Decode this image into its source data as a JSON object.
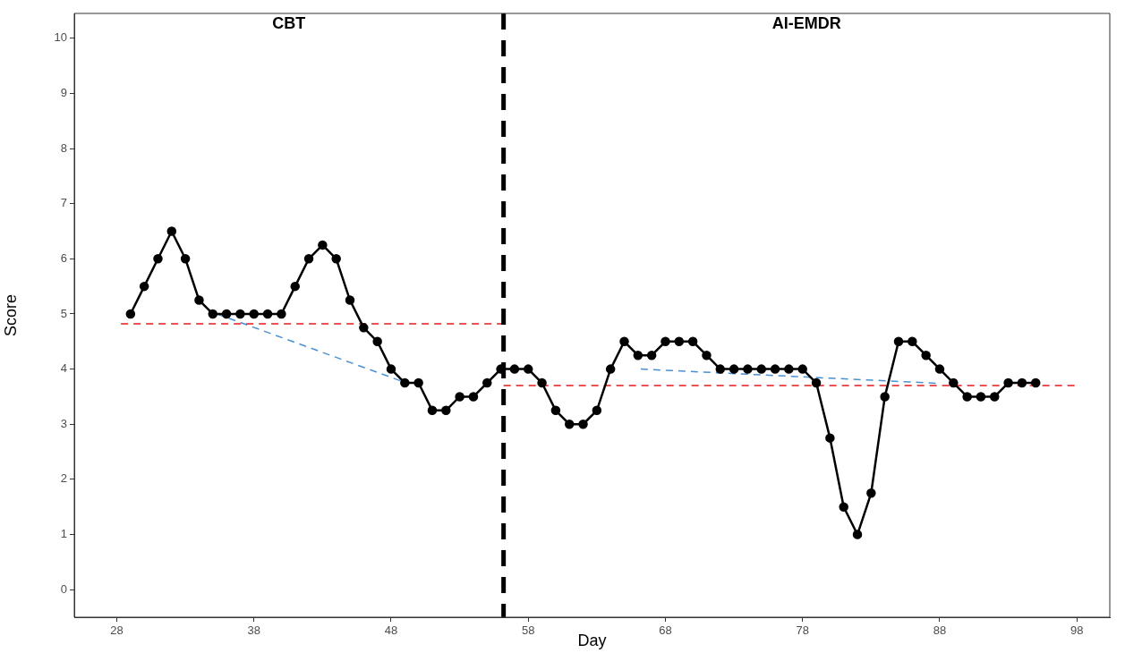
{
  "chart_data": {
    "type": "line",
    "xlabel": "Day",
    "ylabel": "Score",
    "x": [
      29,
      30,
      31,
      32,
      33,
      34,
      35,
      36,
      37,
      38,
      39,
      40,
      41,
      42,
      43,
      44,
      45,
      46,
      47,
      48,
      49,
      50,
      51,
      52,
      53,
      54,
      55,
      56,
      57,
      58,
      59,
      60,
      61,
      62,
      63,
      64,
      65,
      66,
      67,
      68,
      69,
      70,
      71,
      72,
      73,
      74,
      75,
      76,
      77,
      78,
      79,
      80,
      81,
      82,
      83,
      84,
      85,
      86,
      87,
      88,
      89,
      90,
      91,
      92,
      93,
      94,
      95
    ],
    "series": [
      {
        "color": "#000000",
        "marker": "circle",
        "line_style": "solid",
        "values": [
          5,
          5.5,
          6,
          6.5,
          6,
          5.25,
          5,
          5,
          5,
          5,
          5,
          5,
          5.5,
          6,
          6.25,
          6,
          5.25,
          4.75,
          4.5,
          4,
          3.75,
          3.75,
          3.25,
          3.25,
          3.5,
          3.5,
          3.75,
          4,
          4,
          4,
          3.75,
          3.25,
          3,
          3,
          3.25,
          4,
          4.5,
          4.25,
          4.25,
          4.5,
          4.5,
          4.5,
          4.25,
          4,
          4,
          4,
          4,
          4,
          4,
          4,
          3.75,
          2.75,
          1.5,
          1,
          1.75,
          3.5,
          4.5,
          4.5,
          4.25,
          4,
          3.75,
          3.5,
          3.5,
          3.5,
          3.75,
          3.75,
          3.75
        ]
      },
      {
        "color": "#e41a1c",
        "marker": "none",
        "line_style": "dashed",
        "x": [
          28.3,
          56.2
        ],
        "values": [
          4.82,
          4.82
        ]
      },
      {
        "color": "#e41a1c",
        "marker": "none",
        "line_style": "dashed",
        "x": [
          56.2,
          98
        ],
        "values": [
          3.7,
          3.7
        ]
      },
      {
        "color": "#4a90d0",
        "marker": "none",
        "line_style": "dashed",
        "x": [
          35.3,
          49.1
        ],
        "values": [
          5,
          3.75
        ]
      },
      {
        "color": "#4a90d0",
        "marker": "none",
        "line_style": "dashed",
        "x": [
          66.2,
          88
        ],
        "values": [
          4,
          3.74
        ]
      }
    ],
    "ref_lines": [
      {
        "axis": "x",
        "value": 56.2,
        "color": "#000000",
        "line_style": "dashed"
      }
    ],
    "annotations": [
      "CBT",
      "AI-EMDR"
    ],
    "xlim": [
      24.9,
      100.4
    ],
    "xticks": [
      28,
      38,
      48,
      58,
      68,
      78,
      88,
      98
    ],
    "ylim": [
      -0.5,
      10.45
    ],
    "yticks": [
      0,
      1,
      2,
      3,
      4,
      5,
      6,
      7,
      8,
      9,
      10
    ],
    "grid": false,
    "legend": false
  }
}
